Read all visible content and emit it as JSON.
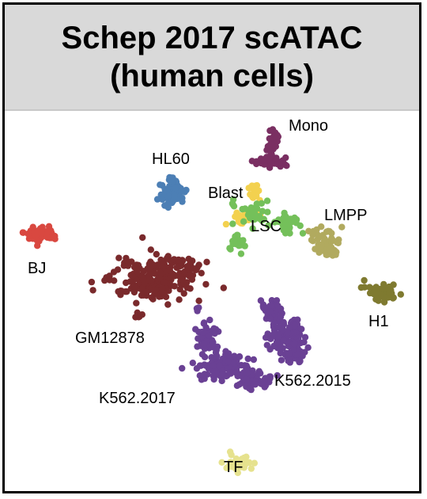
{
  "title": {
    "line1": "Schep 2017 scATAC",
    "line2": "(human cells)"
  },
  "chart_data": {
    "type": "scatter",
    "title": "Schep 2017 scATAC (human cells)",
    "xlabel": "",
    "ylabel": "",
    "axes_visible": false,
    "legend": "none (clusters labeled directly)",
    "xlim": [
      0,
      530
    ],
    "ylim": [
      0,
      490
    ],
    "series": [
      {
        "name": "Mono",
        "color": "#7a2f62",
        "n": 70,
        "blobs": [
          {
            "x": 346,
            "y": 205,
            "rx": 24,
            "ry": 6
          },
          {
            "x": 344,
            "y": 190,
            "rx": 6,
            "ry": 12
          },
          {
            "x": 345,
            "y": 171,
            "rx": 7,
            "ry": 9
          }
        ]
      },
      {
        "name": "HL60",
        "color": "#4c7fb5",
        "n": 80,
        "blobs": [
          {
            "x": 218,
            "y": 244,
            "rx": 15,
            "ry": 13
          },
          {
            "x": 218,
            "y": 228,
            "rx": 7,
            "ry": 6
          }
        ]
      },
      {
        "name": "Blast",
        "color": "#f3d14f",
        "n": 45,
        "blobs": [
          {
            "x": 323,
            "y": 243,
            "rx": 7,
            "ry": 12
          },
          {
            "x": 305,
            "y": 278,
            "rx": 10,
            "ry": 8
          },
          {
            "x": 327,
            "y": 268,
            "rx": 6,
            "ry": 5
          }
        ]
      },
      {
        "name": "LSC",
        "color": "#74c05a",
        "n": 90,
        "blobs": [
          {
            "x": 320,
            "y": 270,
            "rx": 12,
            "ry": 15
          },
          {
            "x": 365,
            "y": 283,
            "rx": 16,
            "ry": 12
          },
          {
            "x": 300,
            "y": 305,
            "rx": 10,
            "ry": 12
          },
          {
            "x": 295,
            "y": 258,
            "rx": 5,
            "ry": 5
          }
        ]
      },
      {
        "name": "LMPP",
        "color": "#b1aa5f",
        "n": 65,
        "blobs": [
          {
            "x": 410,
            "y": 305,
            "rx": 18,
            "ry": 13
          },
          {
            "x": 420,
            "y": 318,
            "rx": 8,
            "ry": 8
          }
        ]
      },
      {
        "name": "BJ",
        "color": "#d94840",
        "n": 60,
        "blobs": [
          {
            "x": 52,
            "y": 294,
            "rx": 20,
            "ry": 9
          }
        ]
      },
      {
        "name": "H1",
        "color": "#7f7a30",
        "n": 50,
        "blobs": [
          {
            "x": 483,
            "y": 368,
            "rx": 18,
            "ry": 10
          }
        ]
      },
      {
        "name": "GM12878",
        "color": "#7a2a2c",
        "n": 260,
        "blobs": [
          {
            "x": 196,
            "y": 353,
            "rx": 50,
            "ry": 24
          },
          {
            "x": 228,
            "y": 334,
            "rx": 18,
            "ry": 9
          },
          {
            "x": 180,
            "y": 398,
            "rx": 6,
            "ry": 4
          }
        ]
      },
      {
        "name": "K562.2015",
        "color": "#6a4194",
        "n": 180,
        "blobs": [
          {
            "x": 341,
            "y": 393,
            "rx": 14,
            "ry": 13
          },
          {
            "x": 360,
            "y": 422,
            "rx": 20,
            "ry": 18
          },
          {
            "x": 372,
            "y": 445,
            "rx": 14,
            "ry": 12
          }
        ]
      },
      {
        "name": "K562.2017",
        "color": "#6a4194",
        "n": 220,
        "blobs": [
          {
            "x": 262,
            "y": 427,
            "rx": 12,
            "ry": 16
          },
          {
            "x": 283,
            "y": 462,
            "rx": 32,
            "ry": 14
          },
          {
            "x": 322,
            "y": 480,
            "rx": 20,
            "ry": 10
          },
          {
            "x": 250,
            "y": 390,
            "rx": 3,
            "ry": 3
          }
        ]
      },
      {
        "name": "TF",
        "color": "#e6e28e",
        "n": 40,
        "blobs": [
          {
            "x": 303,
            "y": 585,
            "rx": 17,
            "ry": 9
          }
        ]
      }
    ],
    "labels": [
      {
        "text": "Mono",
        "x": 365,
        "y": 165
      },
      {
        "text": "HL60",
        "x": 192,
        "y": 207
      },
      {
        "text": "Blast",
        "x": 263,
        "y": 250
      },
      {
        "text": "LMPP",
        "x": 410,
        "y": 278
      },
      {
        "text": "LSC",
        "x": 317,
        "y": 292
      },
      {
        "text": "BJ",
        "x": 35,
        "y": 345
      },
      {
        "text": "H1",
        "x": 466,
        "y": 412
      },
      {
        "text": "GM12878",
        "x": 95,
        "y": 433
      },
      {
        "text": "K562.2015",
        "x": 347,
        "y": 487
      },
      {
        "text": "K562.2017",
        "x": 125,
        "y": 509
      },
      {
        "text": "TF",
        "x": 283,
        "y": 596
      }
    ]
  }
}
